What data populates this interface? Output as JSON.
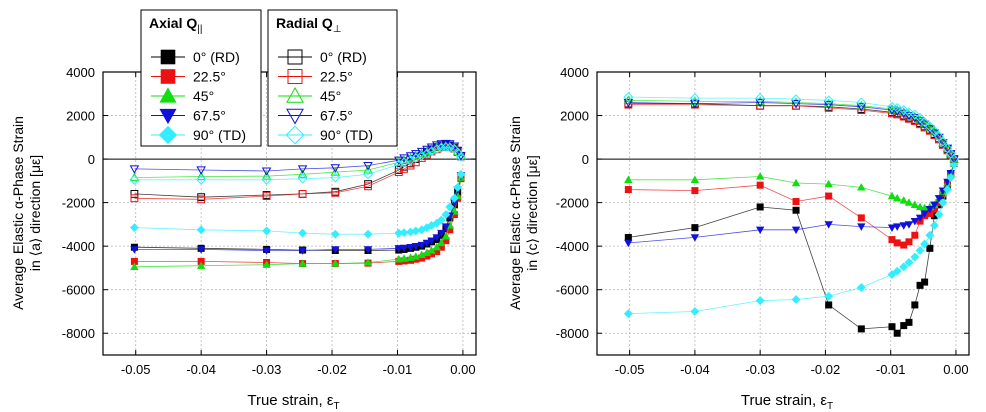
{
  "legend": {
    "axial": {
      "title": "Axial Q",
      "title_sub": "||",
      "entries": [
        "0° (RD)",
        "22.5°",
        "45°",
        "67.5°",
        "90° (TD)"
      ]
    },
    "radial": {
      "title": "Radial Q",
      "title_sub": "⊥",
      "entries": [
        "0° (RD)",
        "22.5°",
        "45°",
        "67.5°",
        "90° (TD)"
      ]
    }
  },
  "colors": {
    "0": "#000000",
    "22.5": "#ee1111",
    "45": "#11dd11",
    "67.5": "#1111dd",
    "90": "#33eeff"
  },
  "chart_data": [
    {
      "type": "scatter",
      "panel": "left",
      "ylabel_line1": "Average Elastic α-Phase Strain",
      "ylabel_line2": "in ⟨a⟩ direction [με]",
      "xlabel_main": "True strain, ε",
      "xlabel_sub": "T",
      "xlim": [
        -0.055,
        0.002
      ],
      "ylim": [
        -9000,
        4000
      ],
      "xticks": [
        -0.05,
        -0.04,
        -0.03,
        -0.02,
        -0.01,
        0.0
      ],
      "xtick_labels": [
        "-0.05",
        "-0.04",
        "-0.03",
        "-0.02",
        "-0.01",
        "0.00"
      ],
      "yticks": [
        -8000,
        -6000,
        -4000,
        -2000,
        0,
        2000,
        4000
      ],
      "ytick_labels": [
        "-8000",
        "-6000",
        "-4000",
        "-2000",
        "0",
        "2000",
        "4000"
      ],
      "grid": true,
      "x": [
        -0.0502,
        -0.04,
        -0.03,
        -0.0245,
        -0.0195,
        -0.0145,
        -0.0098,
        -0.009,
        -0.008,
        -0.0072,
        -0.0063,
        -0.0055,
        -0.0048,
        -0.004,
        -0.0033,
        -0.0026,
        -0.002,
        -0.0013,
        -0.0008,
        -0.0003
      ],
      "series": [
        {
          "key": "0",
          "kind": "axial",
          "values": [
            -4050,
            -4100,
            -4150,
            -4180,
            -4200,
            -4200,
            -4180,
            -4150,
            -4100,
            -4050,
            -4000,
            -3900,
            -3800,
            -3700,
            -3500,
            -3200,
            -2700,
            -2100,
            -1500,
            -800
          ]
        },
        {
          "key": "22.5",
          "kind": "axial",
          "values": [
            -4700,
            -4700,
            -4750,
            -4800,
            -4800,
            -4780,
            -4700,
            -4680,
            -4650,
            -4600,
            -4550,
            -4450,
            -4350,
            -4250,
            -4050,
            -3750,
            -3250,
            -2550,
            -1800,
            -900
          ]
        },
        {
          "key": "45",
          "kind": "axial",
          "values": [
            -4950,
            -4900,
            -4850,
            -4800,
            -4800,
            -4750,
            -4600,
            -4570,
            -4530,
            -4480,
            -4400,
            -4300,
            -4200,
            -4050,
            -3850,
            -3550,
            -3050,
            -2400,
            -1700,
            -850
          ]
        },
        {
          "key": "67.5",
          "kind": "axial",
          "values": [
            -4150,
            -4150,
            -4200,
            -4200,
            -4150,
            -4150,
            -4100,
            -4080,
            -4050,
            -4000,
            -3950,
            -3850,
            -3750,
            -3600,
            -3400,
            -3100,
            -2600,
            -2000,
            -1400,
            -750
          ]
        },
        {
          "key": "90",
          "kind": "axial",
          "values": [
            -3150,
            -3250,
            -3300,
            -3400,
            -3450,
            -3450,
            -3400,
            -3380,
            -3350,
            -3300,
            -3250,
            -3150,
            -3050,
            -2950,
            -2800,
            -2550,
            -2200,
            -1800,
            -1300,
            -700
          ]
        },
        {
          "key": "0",
          "kind": "radial",
          "values": [
            -1600,
            -1750,
            -1650,
            -1600,
            -1500,
            -1150,
            -500,
            -350,
            -200,
            0,
            150,
            300,
            450,
            550,
            620,
            650,
            620,
            520,
            350,
            150
          ]
        },
        {
          "key": "22.5",
          "kind": "radial",
          "values": [
            -1800,
            -1850,
            -1700,
            -1600,
            -1550,
            -1250,
            -600,
            -450,
            -300,
            -150,
            50,
            200,
            350,
            450,
            550,
            580,
            560,
            480,
            320,
            120
          ]
        },
        {
          "key": "45",
          "kind": "radial",
          "values": [
            -850,
            -800,
            -780,
            -700,
            -600,
            -500,
            -150,
            -50,
            50,
            150,
            250,
            350,
            450,
            550,
            600,
            620,
            600,
            500,
            350,
            150
          ]
        },
        {
          "key": "67.5",
          "kind": "radial",
          "values": [
            -450,
            -500,
            -550,
            -450,
            -400,
            -300,
            -50,
            50,
            150,
            250,
            350,
            450,
            550,
            650,
            700,
            720,
            700,
            600,
            400,
            150
          ]
        },
        {
          "key": "90",
          "kind": "radial",
          "values": [
            -950,
            -950,
            -950,
            -900,
            -850,
            -700,
            -250,
            -150,
            -50,
            50,
            150,
            250,
            350,
            450,
            520,
            550,
            530,
            450,
            300,
            100
          ]
        }
      ]
    },
    {
      "type": "scatter",
      "panel": "right",
      "ylabel_line1": "Average Elastic α-Phase Strain",
      "ylabel_line2": "in ⟨c⟩ direction [με]",
      "xlabel_main": "True strain, ε",
      "xlabel_sub": "T",
      "xlim": [
        -0.055,
        0.002
      ],
      "ylim": [
        -9000,
        4000
      ],
      "xticks": [
        -0.05,
        -0.04,
        -0.03,
        -0.02,
        -0.01,
        0.0
      ],
      "xtick_labels": [
        "-0.05",
        "-0.04",
        "-0.03",
        "-0.02",
        "-0.01",
        "0.00"
      ],
      "yticks": [
        -8000,
        -6000,
        -4000,
        -2000,
        0,
        2000,
        4000
      ],
      "ytick_labels": [
        "-8000",
        "-6000",
        "-4000",
        "-2000",
        "0",
        "2000",
        "4000"
      ],
      "grid": true,
      "x": [
        -0.0502,
        -0.04,
        -0.03,
        -0.0245,
        -0.0195,
        -0.0145,
        -0.0098,
        -0.009,
        -0.008,
        -0.0072,
        -0.0063,
        -0.0055,
        -0.0048,
        -0.004,
        -0.0033,
        -0.0026,
        -0.002,
        -0.0013,
        -0.0008,
        -0.0003
      ],
      "series": [
        {
          "key": "0",
          "kind": "axial",
          "values": [
            -3600,
            -3150,
            -2200,
            -2350,
            -6700,
            -7800,
            -7700,
            -8000,
            -7650,
            -7500,
            -6700,
            -5800,
            -5650,
            -4100,
            -2600,
            -2100,
            -1700,
            -1200,
            -700,
            -200
          ]
        },
        {
          "key": "22.5",
          "kind": "axial",
          "values": [
            -1400,
            -1450,
            -1200,
            -1950,
            -1700,
            -2700,
            -3700,
            -3850,
            -3950,
            -3800,
            -3500,
            -2850,
            -2600,
            -2500,
            -2300,
            -2000,
            -1600,
            -1150,
            -700,
            -200
          ]
        },
        {
          "key": "45",
          "kind": "axial",
          "values": [
            -950,
            -950,
            -800,
            -1100,
            -1150,
            -1300,
            -1700,
            -1800,
            -1900,
            -2000,
            -2100,
            -2200,
            -2250,
            -2200,
            -2100,
            -1850,
            -1500,
            -1100,
            -650,
            -200
          ]
        },
        {
          "key": "67.5",
          "kind": "axial",
          "values": [
            -3850,
            -3600,
            -3250,
            -3250,
            -3000,
            -3100,
            -3150,
            -3100,
            -3050,
            -3000,
            -2850,
            -2700,
            -2500,
            -2300,
            -2100,
            -1800,
            -1450,
            -1050,
            -650,
            -200
          ]
        },
        {
          "key": "90",
          "kind": "axial",
          "values": [
            -7100,
            -7000,
            -6500,
            -6450,
            -6300,
            -5900,
            -5300,
            -5150,
            -4950,
            -4750,
            -4500,
            -4200,
            -3900,
            -3500,
            -3050,
            -2550,
            -2000,
            -1400,
            -850,
            -250
          ]
        },
        {
          "key": "0",
          "kind": "radial",
          "values": [
            2550,
            2550,
            2450,
            2450,
            2400,
            2300,
            2150,
            2100,
            2000,
            1900,
            1800,
            1650,
            1500,
            1350,
            1150,
            950,
            700,
            450,
            200,
            0
          ]
        },
        {
          "key": "22.5",
          "kind": "radial",
          "values": [
            2500,
            2500,
            2450,
            2450,
            2350,
            2250,
            2100,
            2050,
            1950,
            1850,
            1750,
            1600,
            1450,
            1300,
            1100,
            900,
            650,
            400,
            200,
            0
          ]
        },
        {
          "key": "45",
          "kind": "radial",
          "values": [
            2700,
            2650,
            2650,
            2600,
            2550,
            2450,
            2300,
            2250,
            2150,
            2050,
            1950,
            1800,
            1650,
            1450,
            1250,
            1050,
            750,
            500,
            250,
            0
          ]
        },
        {
          "key": "67.5",
          "kind": "radial",
          "values": [
            2600,
            2550,
            2600,
            2550,
            2500,
            2400,
            2250,
            2200,
            2100,
            2000,
            1900,
            1750,
            1600,
            1400,
            1200,
            1000,
            750,
            500,
            250,
            0
          ]
        },
        {
          "key": "90",
          "kind": "radial",
          "values": [
            2850,
            2800,
            2800,
            2750,
            2700,
            2600,
            2400,
            2350,
            2250,
            2150,
            2050,
            1900,
            1700,
            1500,
            1300,
            1050,
            800,
            500,
            250,
            0
          ]
        }
      ]
    }
  ]
}
